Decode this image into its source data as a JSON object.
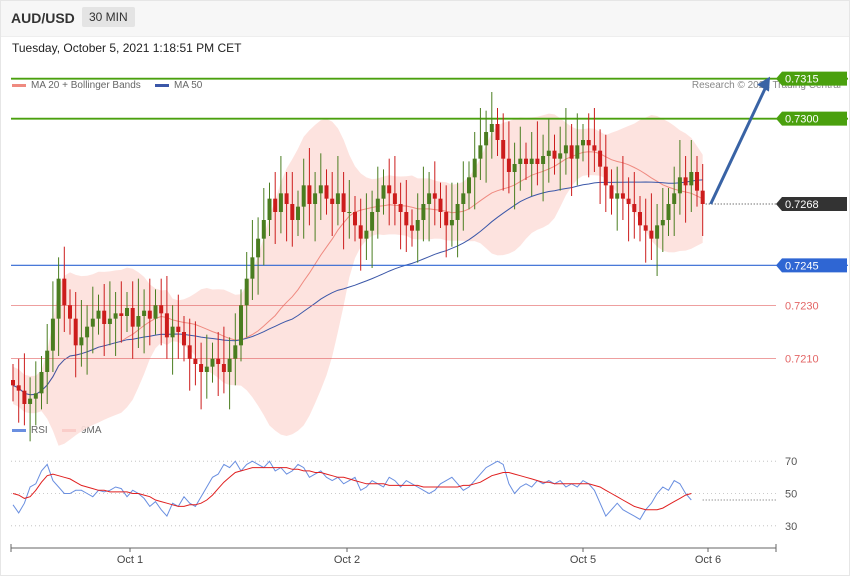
{
  "header": {
    "symbol": "AUD/USD",
    "timeframe": "30 MIN",
    "datetime": "Tuesday, October 5, 2021 1:18:51 PM CET"
  },
  "legend": {
    "ma20": "MA 20 + Bollinger Bands",
    "ma50": "MA 50",
    "rsi": "RSI",
    "ma9": "9MA"
  },
  "copyright": "Research © 2021 Trading Central",
  "colors": {
    "up": "#4a7d20",
    "down": "#cc1c1c",
    "band": "#fde0dc",
    "ma20": "#ef8a80",
    "ma50": "#3b57a8",
    "rsi": "#6a8fe0",
    "ma9": "#e02020",
    "resistance": "#4aa00e",
    "support": "#2f66d3",
    "minor": "#e36666",
    "arrow": "#3963a5"
  },
  "chart_data": [
    {
      "type": "candlestick",
      "ylim": [
        0.719,
        0.7325
      ],
      "x_labels": [
        "Oct 1",
        "Oct 2",
        "Oct 5",
        "Oct 6"
      ],
      "levels": [
        {
          "value": 0.7315,
          "label": "0.7315",
          "kind": "resistance"
        },
        {
          "value": 0.73,
          "label": "0.7300",
          "kind": "resistance"
        },
        {
          "value": 0.7268,
          "label": "0.7268",
          "kind": "current"
        },
        {
          "value": 0.7245,
          "label": "0.7245",
          "kind": "support"
        },
        {
          "value": 0.723,
          "label": "0.7230",
          "kind": "minor"
        },
        {
          "value": 0.721,
          "label": "0.7210",
          "kind": "minor"
        }
      ],
      "last_close": 0.7268,
      "target": 0.7315,
      "close_path": [
        0.72,
        0.7198,
        0.7193,
        0.7195,
        0.7197,
        0.7205,
        0.7213,
        0.7225,
        0.724,
        0.723,
        0.7225,
        0.7215,
        0.7218,
        0.7222,
        0.7225,
        0.7228,
        0.7223,
        0.7225,
        0.7227,
        0.7226,
        0.7229,
        0.7222,
        0.7226,
        0.7228,
        0.7225,
        0.723,
        0.7227,
        0.7218,
        0.7222,
        0.722,
        0.7215,
        0.721,
        0.7208,
        0.7205,
        0.7207,
        0.721,
        0.7208,
        0.7205,
        0.721,
        0.7215,
        0.723,
        0.724,
        0.7248,
        0.7255,
        0.7262,
        0.727,
        0.7265,
        0.7272,
        0.7268,
        0.7262,
        0.7267,
        0.7275,
        0.7268,
        0.7272,
        0.7275,
        0.727,
        0.7268,
        0.7272,
        0.7265,
        0.7265,
        0.726,
        0.7255,
        0.7258,
        0.7265,
        0.727,
        0.7275,
        0.7272,
        0.7268,
        0.7265,
        0.726,
        0.7258,
        0.7262,
        0.7268,
        0.7272,
        0.727,
        0.7265,
        0.726,
        0.7262,
        0.7268,
        0.7272,
        0.7278,
        0.7285,
        0.729,
        0.7295,
        0.7298,
        0.7292,
        0.7285,
        0.728,
        0.7283,
        0.7285,
        0.7283,
        0.7285,
        0.7283,
        0.7286,
        0.7288,
        0.7285,
        0.7287,
        0.729,
        0.7285,
        0.729,
        0.7292,
        0.729,
        0.7288,
        0.7282,
        0.7275,
        0.727,
        0.7272,
        0.727,
        0.7268,
        0.7265,
        0.726,
        0.7258,
        0.7255,
        0.726,
        0.7262,
        0.7268,
        0.7272,
        0.7278,
        0.7275,
        0.728,
        0.7273,
        0.7268
      ]
    },
    {
      "type": "line",
      "ylim": [
        20,
        80
      ],
      "y_ticks": [
        30,
        50,
        70
      ],
      "series": [
        {
          "name": "RSI",
          "values": [
            43,
            38,
            44,
            54,
            56,
            64,
            68,
            58,
            54,
            50,
            50,
            52,
            52,
            50,
            48,
            52,
            51,
            52,
            54,
            53,
            48,
            52,
            50,
            47,
            42,
            45,
            40,
            36,
            44,
            42,
            48,
            44,
            42,
            48,
            54,
            60,
            62,
            68,
            66,
            70,
            64,
            68,
            70,
            68,
            66,
            70,
            64,
            66,
            62,
            64,
            68,
            66,
            60,
            62,
            64,
            60,
            58,
            60,
            56,
            58,
            60,
            52,
            54,
            58,
            56,
            54,
            60,
            58,
            54,
            58,
            56,
            54,
            52,
            50,
            52,
            56,
            58,
            60,
            56,
            52,
            54,
            58,
            62,
            66,
            68,
            70,
            68,
            56,
            50,
            54,
            56,
            54,
            58,
            56,
            58,
            56,
            58,
            54,
            56,
            54,
            58,
            56,
            52,
            44,
            36,
            40,
            44,
            40,
            38,
            36,
            34,
            40,
            44,
            50,
            54,
            52,
            58,
            56,
            50,
            46
          ]
        },
        {
          "name": "9MA",
          "values": [
            50,
            49,
            47,
            48,
            52,
            57,
            61,
            62,
            61,
            60,
            59,
            57,
            55,
            54,
            53,
            52,
            52,
            51,
            51,
            51,
            51,
            50,
            50,
            49,
            48,
            46,
            45,
            44,
            43,
            42,
            42,
            43,
            43,
            44,
            46,
            49,
            53,
            57,
            60,
            63,
            64,
            65,
            66,
            66,
            66,
            66,
            66,
            66,
            66,
            65,
            65,
            64,
            64,
            63,
            63,
            62,
            61,
            60,
            60,
            59,
            58,
            57,
            56,
            56,
            56,
            56,
            55,
            55,
            55,
            55,
            55,
            55,
            54,
            54,
            54,
            54,
            54,
            54,
            54,
            55,
            55,
            56,
            57,
            59,
            61,
            62,
            63,
            63,
            62,
            61,
            60,
            59,
            58,
            57,
            57,
            56,
            56,
            56,
            56,
            56,
            56,
            56,
            55,
            54,
            52,
            50,
            48,
            46,
            44,
            42,
            41,
            40,
            40,
            40,
            41,
            43,
            45,
            47,
            49,
            50
          ]
        }
      ]
    }
  ]
}
